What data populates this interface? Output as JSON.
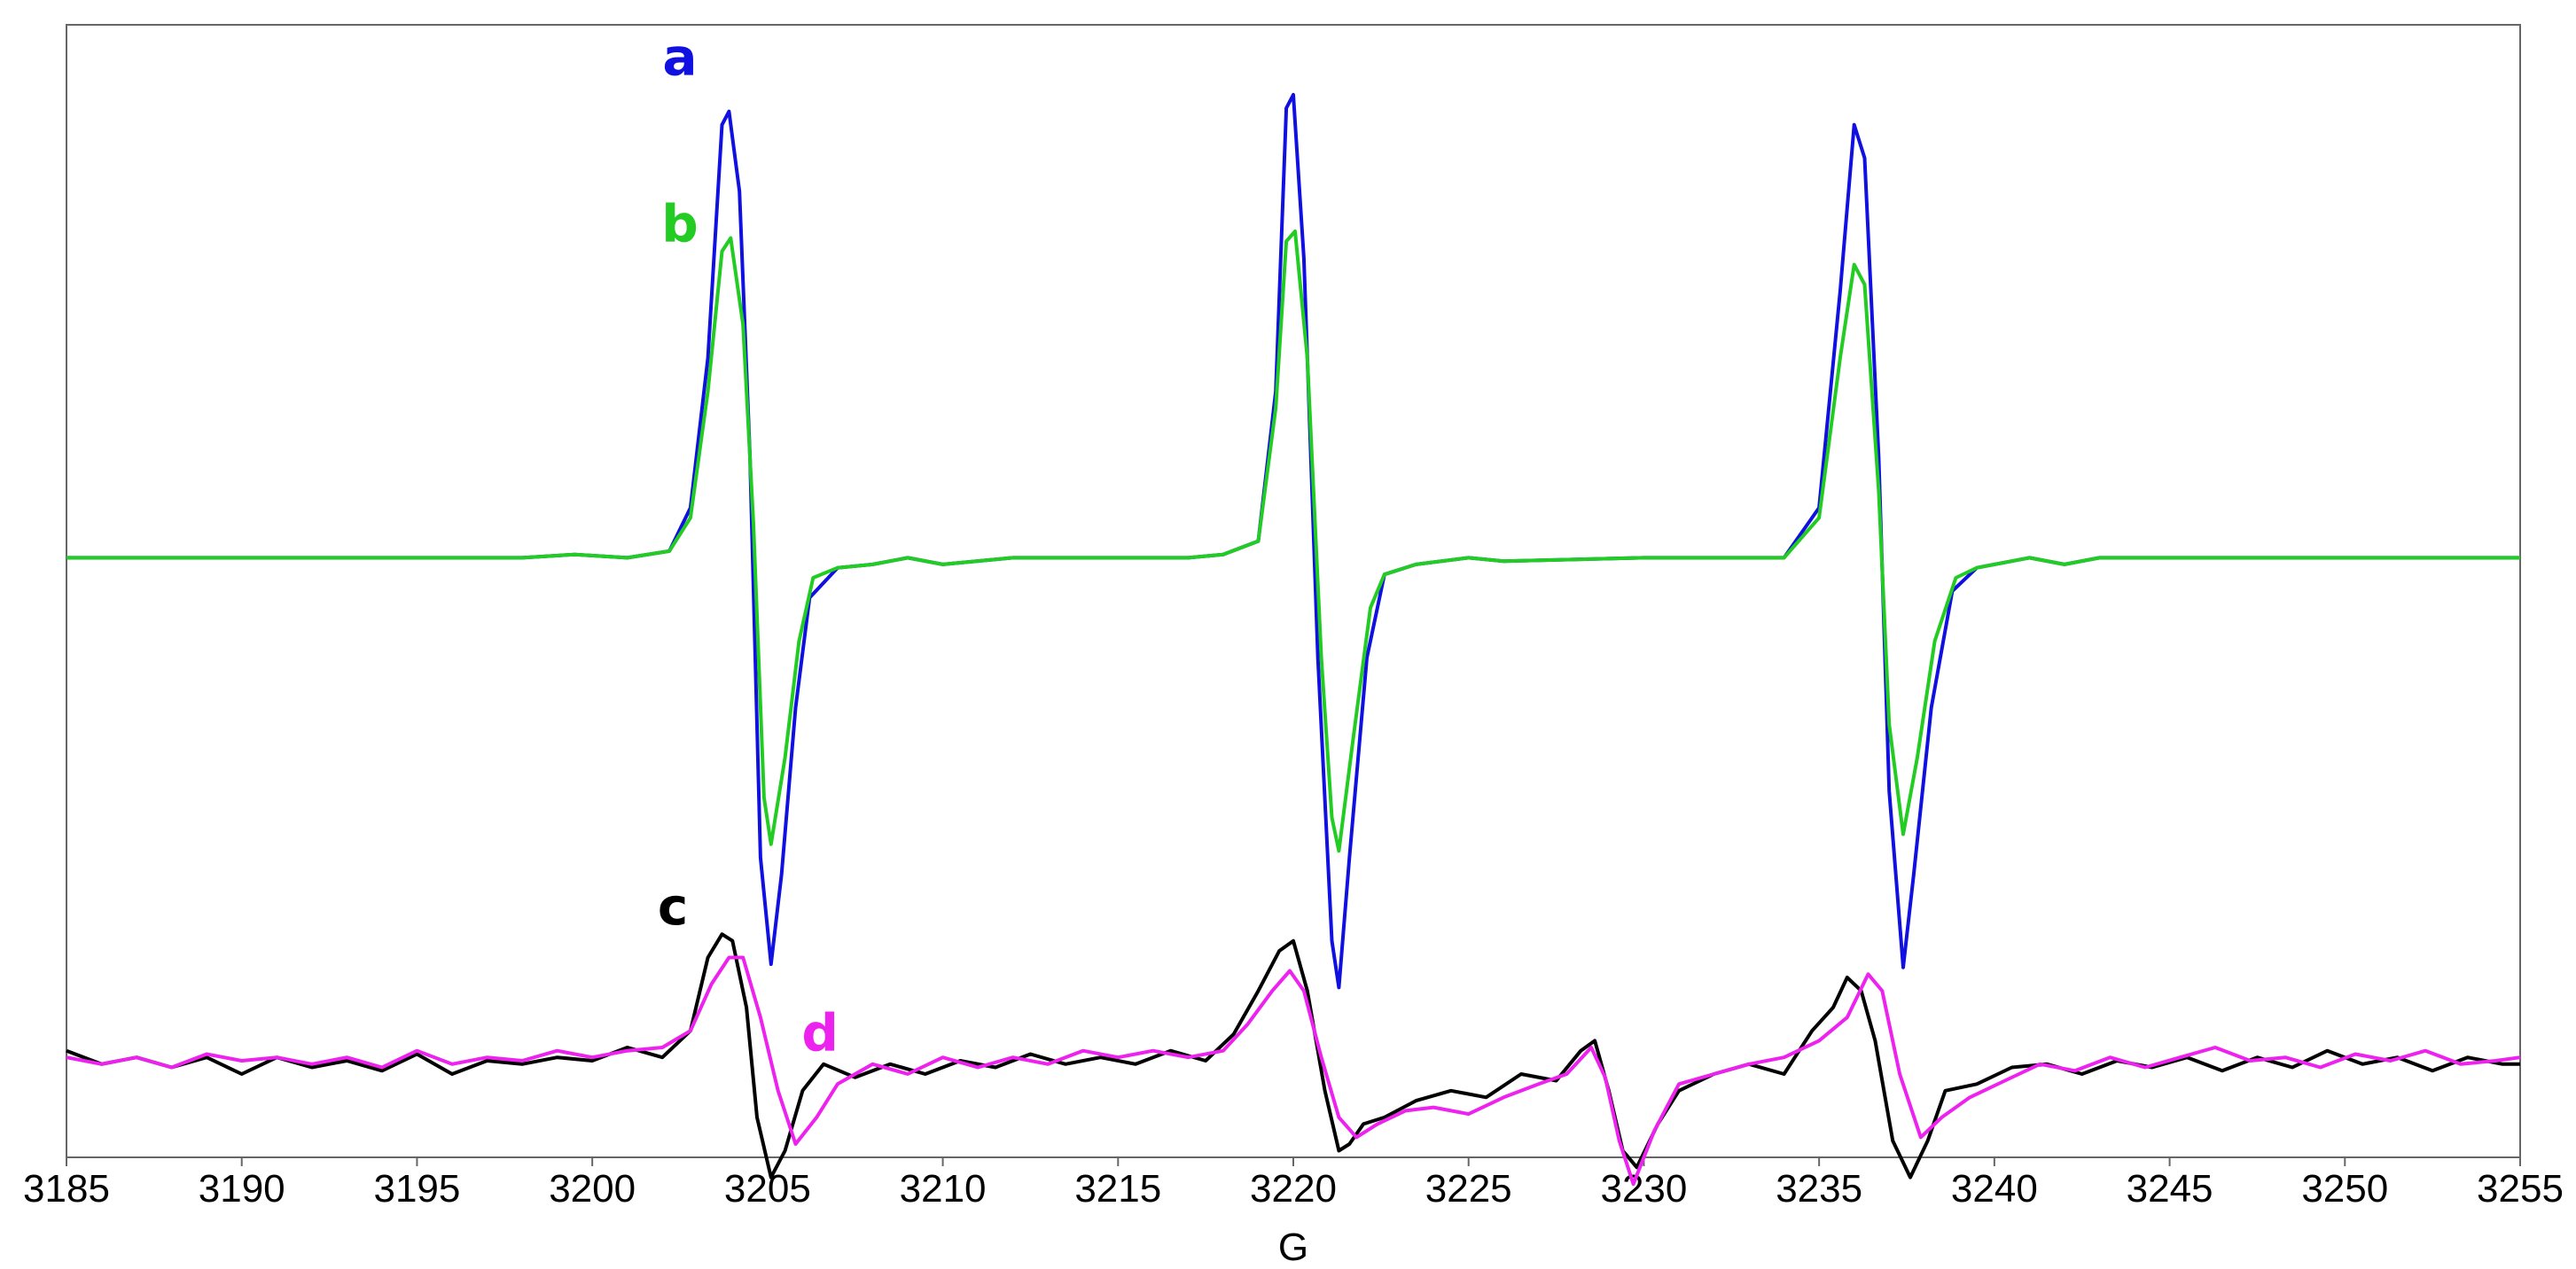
{
  "chart_data": {
    "type": "line",
    "title": "",
    "xlabel": "G",
    "ylabel": "",
    "xlim": [
      3185,
      3255
    ],
    "ylim": [
      -1.8,
      1.6
    ],
    "grid": false,
    "x_ticks": [
      "3185",
      "3190",
      "3195",
      "3200",
      "3205",
      "3210",
      "3215",
      "3220",
      "3225",
      "3230",
      "3235",
      "3240",
      "3245",
      "3250",
      "3255"
    ],
    "series": [
      {
        "name": "a",
        "color": "#1010e0",
        "points": [
          [
            3185,
            0.0
          ],
          [
            3198,
            0.0
          ],
          [
            3199.5,
            0.01
          ],
          [
            3201,
            0.0
          ],
          [
            3202.2,
            0.02
          ],
          [
            3202.8,
            0.15
          ],
          [
            3203.3,
            0.6
          ],
          [
            3203.7,
            1.3
          ],
          [
            3203.9,
            1.34
          ],
          [
            3204.2,
            1.1
          ],
          [
            3204.5,
            0.3
          ],
          [
            3204.8,
            -0.9
          ],
          [
            3205.1,
            -1.22
          ],
          [
            3205.4,
            -0.95
          ],
          [
            3205.8,
            -0.45
          ],
          [
            3206.2,
            -0.12
          ],
          [
            3207,
            -0.03
          ],
          [
            3208,
            -0.02
          ],
          [
            3209,
            0.0
          ],
          [
            3210,
            -0.02
          ],
          [
            3212,
            0.0
          ],
          [
            3217,
            0.0
          ],
          [
            3218,
            0.01
          ],
          [
            3219,
            0.05
          ],
          [
            3219.5,
            0.5
          ],
          [
            3219.8,
            1.35
          ],
          [
            3220.0,
            1.39
          ],
          [
            3220.3,
            0.9
          ],
          [
            3220.7,
            -0.3
          ],
          [
            3221.1,
            -1.15
          ],
          [
            3221.3,
            -1.29
          ],
          [
            3221.6,
            -0.9
          ],
          [
            3222.1,
            -0.3
          ],
          [
            3222.6,
            -0.05
          ],
          [
            3223.5,
            -0.02
          ],
          [
            3225,
            0.0
          ],
          [
            3226,
            -0.01
          ],
          [
            3230,
            0.0
          ],
          [
            3234,
            0.0
          ],
          [
            3235,
            0.15
          ],
          [
            3235.6,
            0.8
          ],
          [
            3236.0,
            1.3
          ],
          [
            3236.3,
            1.2
          ],
          [
            3236.7,
            0.3
          ],
          [
            3237.0,
            -0.7
          ],
          [
            3237.4,
            -1.23
          ],
          [
            3237.7,
            -0.95
          ],
          [
            3238.2,
            -0.45
          ],
          [
            3238.8,
            -0.1
          ],
          [
            3239.5,
            -0.03
          ],
          [
            3241,
            0.0
          ],
          [
            3242,
            -0.02
          ],
          [
            3243,
            0.0
          ],
          [
            3255,
            0.0
          ]
        ]
      },
      {
        "name": "b",
        "color": "#22cc22",
        "points": [
          [
            3185,
            0.0
          ],
          [
            3198,
            0.0
          ],
          [
            3199.5,
            0.01
          ],
          [
            3201,
            0.0
          ],
          [
            3202.2,
            0.02
          ],
          [
            3202.8,
            0.12
          ],
          [
            3203.3,
            0.5
          ],
          [
            3203.7,
            0.92
          ],
          [
            3203.95,
            0.96
          ],
          [
            3204.3,
            0.7
          ],
          [
            3204.6,
            0.1
          ],
          [
            3204.9,
            -0.72
          ],
          [
            3205.1,
            -0.86
          ],
          [
            3205.5,
            -0.6
          ],
          [
            3205.9,
            -0.25
          ],
          [
            3206.3,
            -0.06
          ],
          [
            3207,
            -0.03
          ],
          [
            3208,
            -0.02
          ],
          [
            3209,
            0.0
          ],
          [
            3210,
            -0.02
          ],
          [
            3212,
            0.0
          ],
          [
            3217,
            0.0
          ],
          [
            3218,
            0.01
          ],
          [
            3219,
            0.05
          ],
          [
            3219.5,
            0.45
          ],
          [
            3219.8,
            0.95
          ],
          [
            3220.05,
            0.98
          ],
          [
            3220.4,
            0.6
          ],
          [
            3220.8,
            -0.3
          ],
          [
            3221.1,
            -0.78
          ],
          [
            3221.3,
            -0.88
          ],
          [
            3221.7,
            -0.55
          ],
          [
            3222.2,
            -0.15
          ],
          [
            3222.6,
            -0.05
          ],
          [
            3223.5,
            -0.02
          ],
          [
            3225,
            0.0
          ],
          [
            3226,
            -0.01
          ],
          [
            3230,
            0.0
          ],
          [
            3234,
            0.0
          ],
          [
            3235,
            0.12
          ],
          [
            3235.6,
            0.6
          ],
          [
            3236.0,
            0.88
          ],
          [
            3236.3,
            0.82
          ],
          [
            3236.7,
            0.2
          ],
          [
            3237.0,
            -0.5
          ],
          [
            3237.4,
            -0.83
          ],
          [
            3237.8,
            -0.6
          ],
          [
            3238.3,
            -0.25
          ],
          [
            3238.9,
            -0.06
          ],
          [
            3239.5,
            -0.03
          ],
          [
            3241,
            0.0
          ],
          [
            3242,
            -0.02
          ],
          [
            3243,
            0.0
          ],
          [
            3255,
            0.0
          ]
        ]
      },
      {
        "name": "c",
        "color": "#000000",
        "points": [
          [
            3185,
            -1.48
          ],
          [
            3186,
            -1.52
          ],
          [
            3187,
            -1.5
          ],
          [
            3188,
            -1.53
          ],
          [
            3189,
            -1.5
          ],
          [
            3190,
            -1.55
          ],
          [
            3191,
            -1.5
          ],
          [
            3192,
            -1.53
          ],
          [
            3193,
            -1.51
          ],
          [
            3194,
            -1.54
          ],
          [
            3195,
            -1.49
          ],
          [
            3196,
            -1.55
          ],
          [
            3197,
            -1.51
          ],
          [
            3198,
            -1.52
          ],
          [
            3199,
            -1.5
          ],
          [
            3200,
            -1.51
          ],
          [
            3201,
            -1.47
          ],
          [
            3202,
            -1.5
          ],
          [
            3202.8,
            -1.42
          ],
          [
            3203.3,
            -1.2
          ],
          [
            3203.7,
            -1.13
          ],
          [
            3204.0,
            -1.15
          ],
          [
            3204.4,
            -1.35
          ],
          [
            3204.7,
            -1.68
          ],
          [
            3205.1,
            -1.86
          ],
          [
            3205.5,
            -1.78
          ],
          [
            3206,
            -1.6
          ],
          [
            3206.6,
            -1.52
          ],
          [
            3207.5,
            -1.56
          ],
          [
            3208.5,
            -1.52
          ],
          [
            3209.5,
            -1.55
          ],
          [
            3210.5,
            -1.51
          ],
          [
            3211.5,
            -1.53
          ],
          [
            3212.5,
            -1.49
          ],
          [
            3213.5,
            -1.52
          ],
          [
            3214.5,
            -1.5
          ],
          [
            3215.5,
            -1.52
          ],
          [
            3216.5,
            -1.48
          ],
          [
            3217.5,
            -1.51
          ],
          [
            3218.3,
            -1.43
          ],
          [
            3219,
            -1.3
          ],
          [
            3219.6,
            -1.18
          ],
          [
            3220.0,
            -1.15
          ],
          [
            3220.4,
            -1.3
          ],
          [
            3220.9,
            -1.6
          ],
          [
            3221.3,
            -1.78
          ],
          [
            3221.6,
            -1.76
          ],
          [
            3222,
            -1.7
          ],
          [
            3222.6,
            -1.68
          ],
          [
            3223.5,
            -1.63
          ],
          [
            3224.5,
            -1.6
          ],
          [
            3225.5,
            -1.62
          ],
          [
            3226.5,
            -1.55
          ],
          [
            3227.5,
            -1.57
          ],
          [
            3228.2,
            -1.48
          ],
          [
            3228.6,
            -1.45
          ],
          [
            3229.0,
            -1.6
          ],
          [
            3229.4,
            -1.78
          ],
          [
            3229.8,
            -1.83
          ],
          [
            3230.4,
            -1.7
          ],
          [
            3231,
            -1.6
          ],
          [
            3232,
            -1.55
          ],
          [
            3233,
            -1.52
          ],
          [
            3234,
            -1.55
          ],
          [
            3234.8,
            -1.42
          ],
          [
            3235.4,
            -1.35
          ],
          [
            3235.8,
            -1.26
          ],
          [
            3236.2,
            -1.3
          ],
          [
            3236.6,
            -1.45
          ],
          [
            3237.1,
            -1.75
          ],
          [
            3237.6,
            -1.86
          ],
          [
            3238.1,
            -1.75
          ],
          [
            3238.6,
            -1.6
          ],
          [
            3239.5,
            -1.58
          ],
          [
            3240.5,
            -1.53
          ],
          [
            3241.5,
            -1.52
          ],
          [
            3242.5,
            -1.55
          ],
          [
            3243.5,
            -1.51
          ],
          [
            3244.5,
            -1.53
          ],
          [
            3245.5,
            -1.5
          ],
          [
            3246.5,
            -1.54
          ],
          [
            3247.5,
            -1.5
          ],
          [
            3248.5,
            -1.53
          ],
          [
            3249.5,
            -1.48
          ],
          [
            3250.5,
            -1.52
          ],
          [
            3251.5,
            -1.5
          ],
          [
            3252.5,
            -1.54
          ],
          [
            3253.5,
            -1.5
          ],
          [
            3254.5,
            -1.52
          ],
          [
            3255,
            -1.52
          ]
        ]
      },
      {
        "name": "d",
        "color": "#ee22ee",
        "points": [
          [
            3185,
            -1.5
          ],
          [
            3186,
            -1.52
          ],
          [
            3187,
            -1.5
          ],
          [
            3188,
            -1.53
          ],
          [
            3189,
            -1.49
          ],
          [
            3190,
            -1.51
          ],
          [
            3191,
            -1.5
          ],
          [
            3192,
            -1.52
          ],
          [
            3193,
            -1.5
          ],
          [
            3194,
            -1.53
          ],
          [
            3195,
            -1.48
          ],
          [
            3196,
            -1.52
          ],
          [
            3197,
            -1.5
          ],
          [
            3198,
            -1.51
          ],
          [
            3199,
            -1.48
          ],
          [
            3200,
            -1.5
          ],
          [
            3201,
            -1.48
          ],
          [
            3202,
            -1.47
          ],
          [
            3202.8,
            -1.42
          ],
          [
            3203.4,
            -1.28
          ],
          [
            3203.9,
            -1.2
          ],
          [
            3204.3,
            -1.2
          ],
          [
            3204.8,
            -1.38
          ],
          [
            3205.3,
            -1.6
          ],
          [
            3205.8,
            -1.76
          ],
          [
            3206.4,
            -1.68
          ],
          [
            3207,
            -1.58
          ],
          [
            3208,
            -1.52
          ],
          [
            3209,
            -1.55
          ],
          [
            3210,
            -1.5
          ],
          [
            3211,
            -1.53
          ],
          [
            3212,
            -1.5
          ],
          [
            3213,
            -1.52
          ],
          [
            3214,
            -1.48
          ],
          [
            3215,
            -1.5
          ],
          [
            3216,
            -1.48
          ],
          [
            3217,
            -1.5
          ],
          [
            3218,
            -1.48
          ],
          [
            3218.7,
            -1.4
          ],
          [
            3219.4,
            -1.3
          ],
          [
            3219.9,
            -1.24
          ],
          [
            3220.3,
            -1.3
          ],
          [
            3220.8,
            -1.5
          ],
          [
            3221.3,
            -1.68
          ],
          [
            3221.8,
            -1.74
          ],
          [
            3222.4,
            -1.7
          ],
          [
            3223.2,
            -1.66
          ],
          [
            3224,
            -1.65
          ],
          [
            3225,
            -1.67
          ],
          [
            3226,
            -1.62
          ],
          [
            3227,
            -1.58
          ],
          [
            3227.8,
            -1.55
          ],
          [
            3228.5,
            -1.47
          ],
          [
            3228.9,
            -1.56
          ],
          [
            3229.3,
            -1.75
          ],
          [
            3229.7,
            -1.88
          ],
          [
            3230.3,
            -1.72
          ],
          [
            3231,
            -1.58
          ],
          [
            3232,
            -1.55
          ],
          [
            3233,
            -1.52
          ],
          [
            3234,
            -1.5
          ],
          [
            3235,
            -1.45
          ],
          [
            3235.8,
            -1.38
          ],
          [
            3236.4,
            -1.25
          ],
          [
            3236.8,
            -1.3
          ],
          [
            3237.3,
            -1.55
          ],
          [
            3237.9,
            -1.74
          ],
          [
            3238.5,
            -1.68
          ],
          [
            3239.3,
            -1.62
          ],
          [
            3240.3,
            -1.57
          ],
          [
            3241.3,
            -1.52
          ],
          [
            3242.3,
            -1.54
          ],
          [
            3243.3,
            -1.5
          ],
          [
            3244.3,
            -1.53
          ],
          [
            3245.3,
            -1.5
          ],
          [
            3246.3,
            -1.47
          ],
          [
            3247.3,
            -1.51
          ],
          [
            3248.3,
            -1.5
          ],
          [
            3249.3,
            -1.53
          ],
          [
            3250.3,
            -1.49
          ],
          [
            3251.3,
            -1.51
          ],
          [
            3252.3,
            -1.48
          ],
          [
            3253.3,
            -1.52
          ],
          [
            3254.3,
            -1.51
          ],
          [
            3255,
            -1.5
          ]
        ]
      }
    ]
  }
}
